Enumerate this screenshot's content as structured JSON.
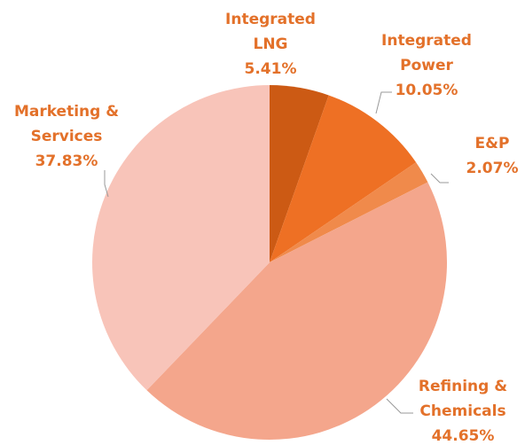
{
  "chart_data": {
    "type": "pie",
    "categories": [
      "Integrated LNG",
      "Integrated Power",
      "E&P",
      "Refining & Chemicals",
      "Marketing & Services"
    ],
    "values": [
      5.41,
      10.05,
      2.07,
      44.65,
      37.83
    ],
    "value_labels": [
      "5.41%",
      "10.05%",
      "2.07%",
      "44.65%",
      "37.83%"
    ],
    "colors": [
      "#cc5a14",
      "#ee7024",
      "#f08a4b",
      "#f4a68c",
      "#f8c4b9"
    ]
  }
}
